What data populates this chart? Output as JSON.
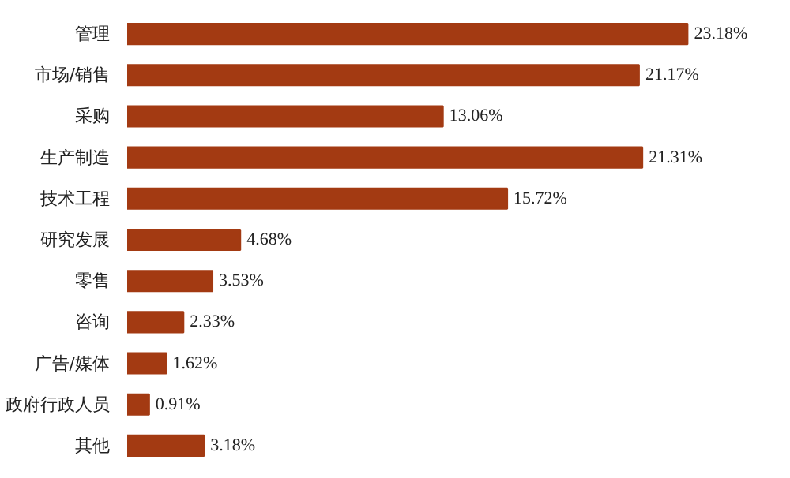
{
  "chart_data": {
    "type": "bar",
    "orientation": "horizontal",
    "categories": [
      "管理",
      "市场/销售",
      "采购",
      "生产制造",
      "技术工程",
      "研究发展",
      "零售",
      "咨询",
      "广告/媒体",
      "政府行政人员",
      "其他"
    ],
    "values": [
      23.18,
      21.17,
      13.06,
      21.31,
      15.72,
      4.68,
      3.53,
      2.33,
      1.62,
      0.91,
      3.18
    ],
    "value_labels": [
      "23.18%",
      "21.17%",
      "13.06%",
      "21.31%",
      "15.72%",
      "4.68%",
      "3.53%",
      "2.33%",
      "1.62%",
      "0.91%",
      "3.18%"
    ],
    "color": "#a33a12",
    "grid": false
  }
}
